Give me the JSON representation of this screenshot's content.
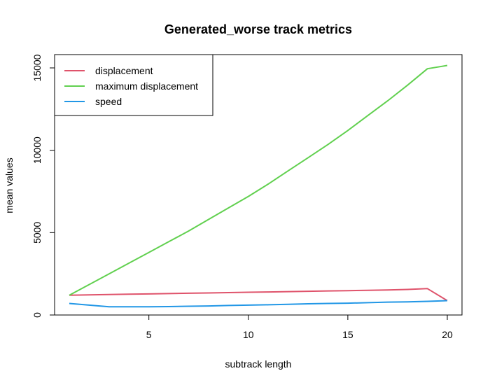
{
  "chart_data": {
    "type": "line",
    "title": "Generated_worse track metrics",
    "xlabel": "subtrack length",
    "ylabel": "mean values",
    "xlim": [
      1,
      20
    ],
    "ylim": [
      0,
      15200
    ],
    "x_ticks": [
      5,
      10,
      15,
      20
    ],
    "y_ticks": [
      0,
      5000,
      10000,
      15000
    ],
    "grid": false,
    "legend_position": "top-left",
    "x": [
      1,
      2,
      3,
      4,
      5,
      6,
      7,
      8,
      9,
      10,
      11,
      12,
      13,
      14,
      15,
      16,
      17,
      18,
      19,
      20
    ],
    "series": [
      {
        "name": "displacement",
        "color": "#DF536B",
        "values": [
          1200,
          1220,
          1240,
          1260,
          1280,
          1300,
          1320,
          1340,
          1360,
          1380,
          1400,
          1420,
          1440,
          1460,
          1480,
          1500,
          1520,
          1550,
          1600,
          870
        ]
      },
      {
        "name": "maximum displacement",
        "color": "#61D04F",
        "values": [
          1200,
          1850,
          2500,
          3150,
          3800,
          4450,
          5100,
          5800,
          6500,
          7200,
          7950,
          8750,
          9550,
          10350,
          11200,
          12100,
          13000,
          13950,
          14950,
          15150
        ]
      },
      {
        "name": "speed",
        "color": "#2297E6",
        "values": [
          700,
          600,
          500,
          500,
          500,
          510,
          530,
          550,
          580,
          600,
          620,
          650,
          680,
          700,
          720,
          750,
          780,
          800,
          830,
          870
        ]
      }
    ]
  }
}
